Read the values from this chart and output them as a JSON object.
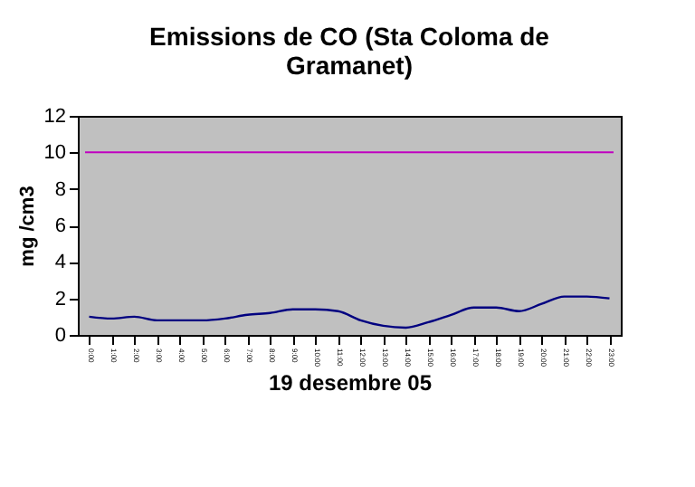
{
  "chart_data": {
    "type": "line",
    "title": "Emissions de CO (Sta Coloma de Gramanet)",
    "xlabel": "19 desembre 05",
    "ylabel": "mg /cm3",
    "categories": [
      "0:00",
      "1:00",
      "2:00",
      "3:00",
      "4:00",
      "5:00",
      "6:00",
      "7:00",
      "8:00",
      "9:00",
      "10:00",
      "11:00",
      "12:00",
      "13:00",
      "14:00",
      "15:00",
      "16:00",
      "17:00",
      "18:00",
      "19:00",
      "20:00",
      "21:00",
      "22:00",
      "23:00"
    ],
    "series": [
      {
        "color": "#000080",
        "values": [
          1.0,
          0.9,
          1.0,
          0.8,
          0.8,
          0.8,
          0.9,
          1.1,
          1.2,
          1.4,
          1.4,
          1.3,
          0.8,
          0.5,
          0.4,
          0.7,
          1.1,
          1.5,
          1.5,
          1.3,
          1.7,
          2.1,
          2.1,
          2.0
        ]
      }
    ],
    "ylim": [
      0,
      12
    ],
    "yticks": [
      0,
      2,
      4,
      6,
      8,
      10,
      12
    ],
    "grid": false,
    "ref_lines": [
      {
        "axis": "y",
        "value": 10,
        "color": "#c000c0"
      }
    ]
  }
}
